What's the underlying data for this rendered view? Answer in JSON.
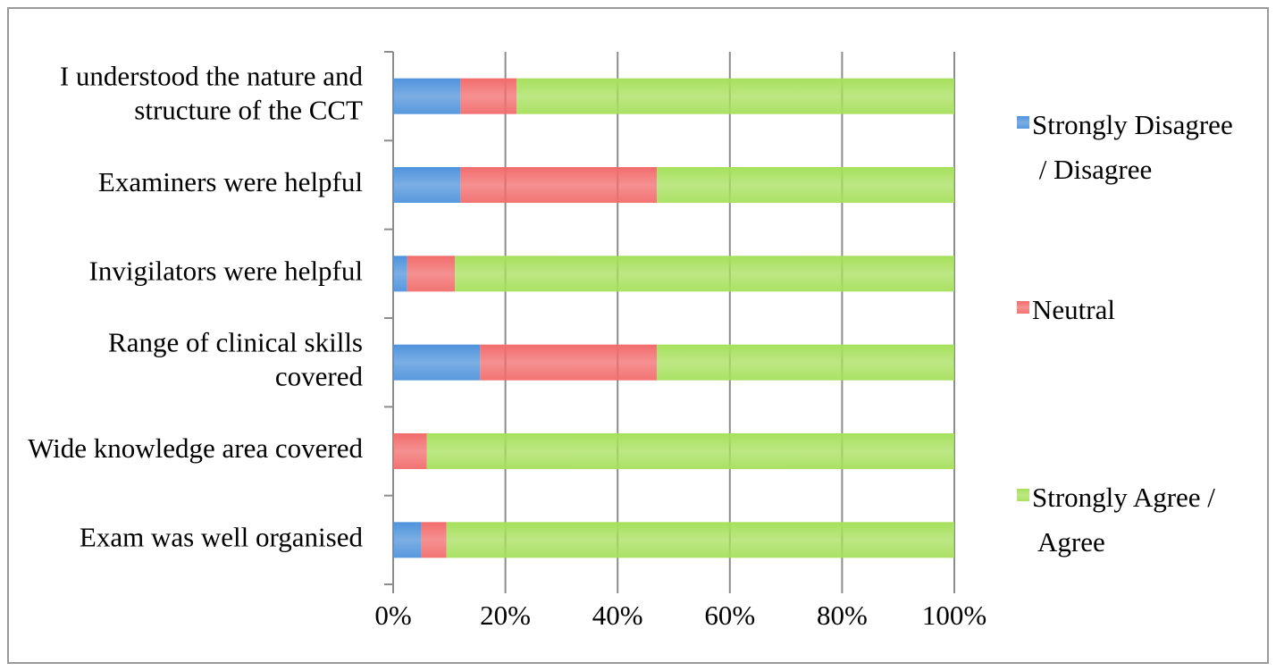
{
  "chart_data": {
    "type": "stacked-barh",
    "categories": [
      "I understood the nature and structure of the CCT",
      "Examiners were helpful",
      "Invigilators were helpful",
      "Range of clinical skills covered",
      "Wide knowledge area covered",
      "Exam was well organised"
    ],
    "series": [
      {
        "name": "Strongly Disagree / Disagree",
        "color": "#4f93dc",
        "values": [
          12,
          12,
          2.5,
          15.5,
          0,
          5
        ]
      },
      {
        "name": "Neutral",
        "color": "#f26c6c",
        "values": [
          10,
          35,
          8.5,
          31.5,
          6,
          4.5
        ]
      },
      {
        "name": "Strongly Agree / Agree",
        "color": "#a6e05c",
        "values": [
          78,
          53,
          89,
          53,
          94,
          90.5
        ]
      }
    ],
    "xlim": [
      0,
      100
    ],
    "xticks": [
      {
        "value": 0,
        "label": "0%"
      },
      {
        "value": 20,
        "label": "20%"
      },
      {
        "value": 40,
        "label": "40%"
      },
      {
        "value": 60,
        "label": "60%"
      },
      {
        "value": 80,
        "label": "80%"
      },
      {
        "value": 100,
        "label": "100%"
      }
    ],
    "grid": true,
    "legend": "right"
  }
}
